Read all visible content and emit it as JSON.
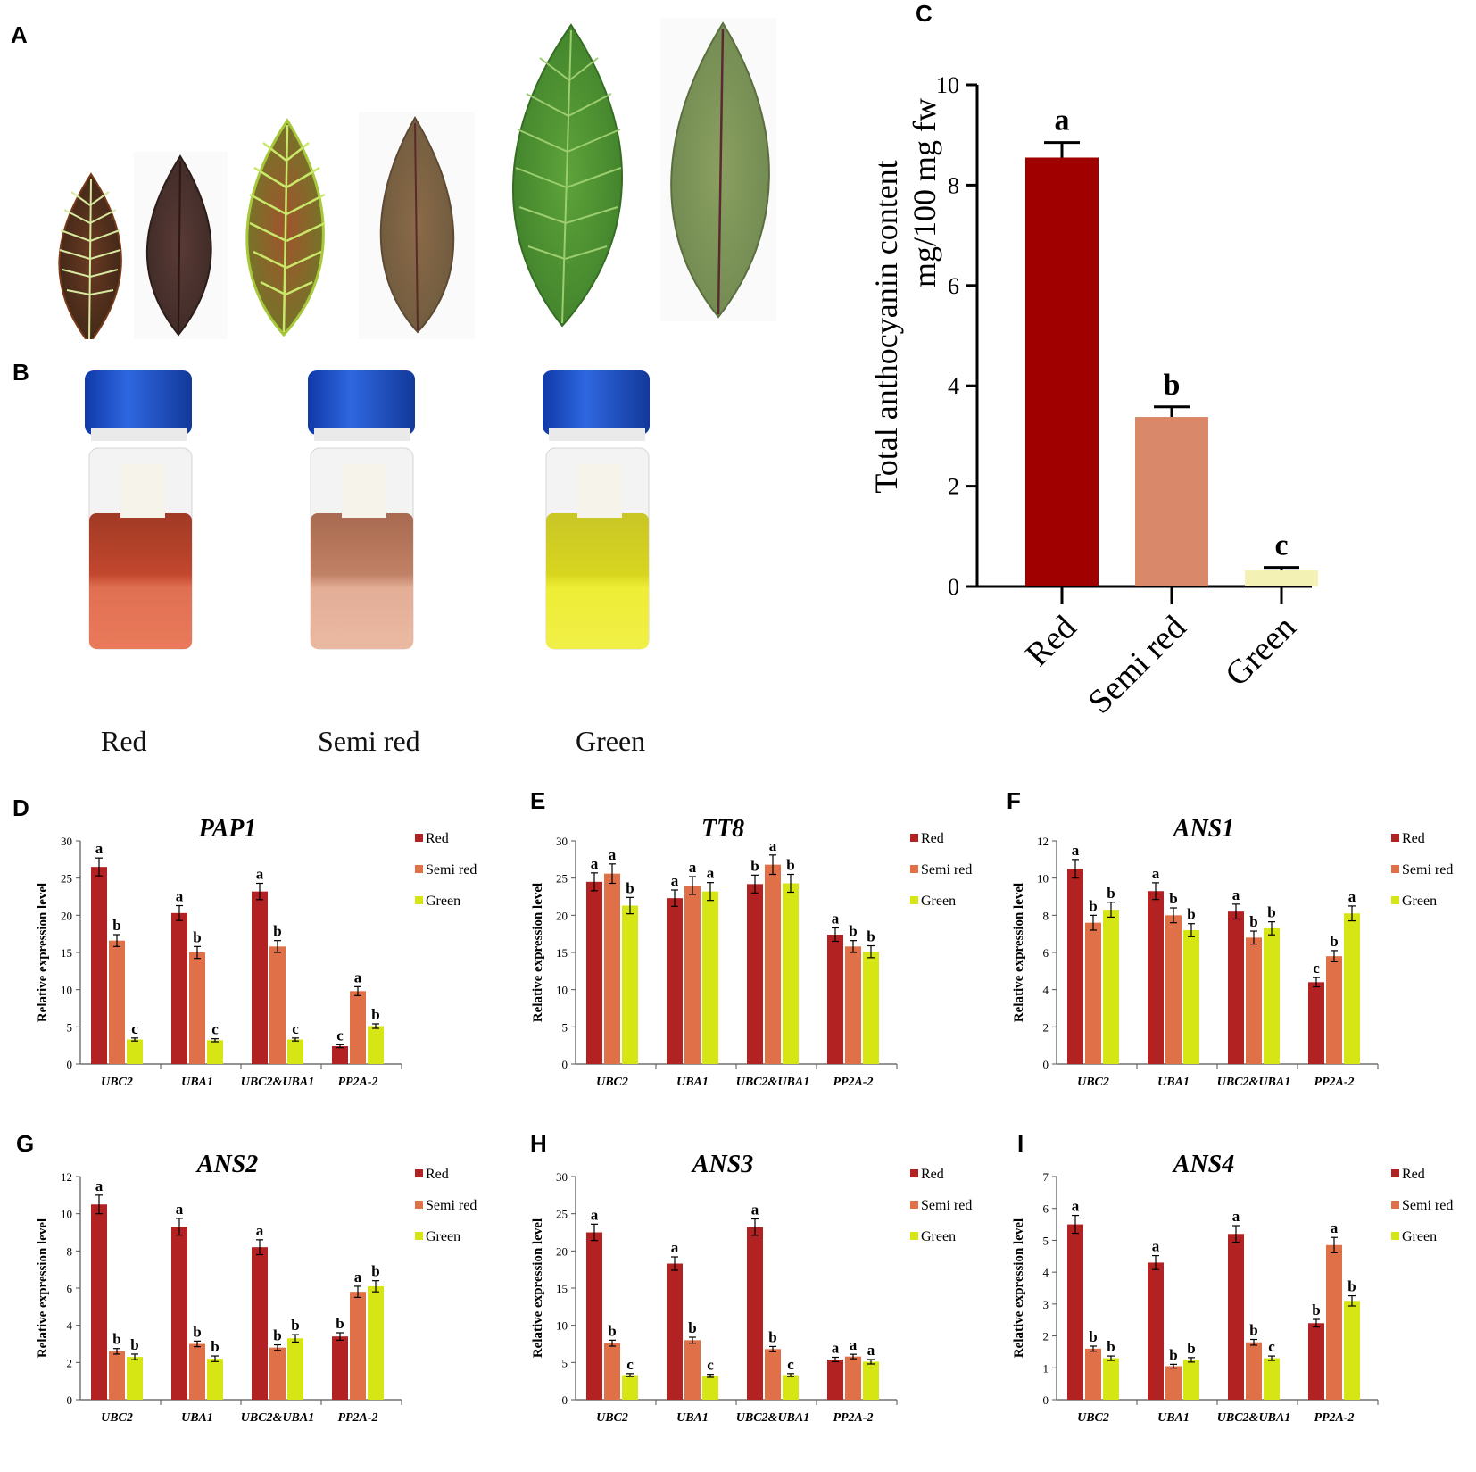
{
  "panels": {
    "A": "A",
    "B": "B",
    "C": "C",
    "D": "D",
    "E": "E",
    "F": "F",
    "G": "G",
    "H": "H",
    "I": "I"
  },
  "sample_labels": [
    "Red",
    "Semi red",
    "Green"
  ],
  "colors": {
    "red": "#b22222",
    "semi": "#e07048",
    "green": "#d6e614",
    "c_red": "#a00000",
    "c_semi": "#d9896a",
    "c_green": "#f3f2b4",
    "cap": "#1d4fc4"
  },
  "chart_data": [
    {
      "id": "C",
      "type": "bar",
      "title": "",
      "ylabel": "Total anthocyanin content mg/100 mg fw",
      "ylabel_lines": [
        "Total anthocyanin content",
        "mg/100 mg fw"
      ],
      "categories": [
        "Red",
        "Semi red",
        "Green"
      ],
      "values": [
        8.55,
        3.38,
        0.32
      ],
      "errors": [
        0.3,
        0.2,
        0.06
      ],
      "letters": [
        "a",
        "b",
        "c"
      ],
      "ylim": [
        0,
        10
      ],
      "yticks": [
        0,
        2,
        4,
        6,
        8,
        10
      ]
    },
    {
      "id": "D",
      "type": "bar",
      "title": "PAP1",
      "ylabel": "Relative expression level",
      "categories": [
        "UBC2",
        "UBA1",
        "UBC2&UBA1",
        "PP2A-2"
      ],
      "legend": [
        "Red",
        "Semi red",
        "Green"
      ],
      "ylim": [
        0,
        30
      ],
      "yticks": [
        0,
        5,
        10,
        15,
        20,
        25,
        30
      ],
      "series": [
        {
          "name": "Red",
          "values": [
            26.5,
            20.3,
            23.2,
            2.4
          ],
          "errors": [
            1.2,
            1.0,
            1.1,
            0.2
          ],
          "letters": [
            "a",
            "a",
            "a",
            "c"
          ]
        },
        {
          "name": "Semi red",
          "values": [
            16.6,
            15.0,
            15.8,
            9.8
          ],
          "errors": [
            0.8,
            0.8,
            0.8,
            0.6
          ],
          "letters": [
            "b",
            "b",
            "b",
            "a"
          ]
        },
        {
          "name": "Green",
          "values": [
            3.3,
            3.2,
            3.3,
            5.1
          ],
          "errors": [
            0.2,
            0.2,
            0.2,
            0.3
          ],
          "letters": [
            "c",
            "c",
            "c",
            "b"
          ]
        }
      ]
    },
    {
      "id": "E",
      "type": "bar",
      "title": "TT8",
      "ylabel": "Relative expression level",
      "categories": [
        "UBC2",
        "UBA1",
        "UBC2&UBA1",
        "PP2A-2"
      ],
      "legend": [
        "Red",
        "Semi red",
        "Green"
      ],
      "ylim": [
        0,
        30
      ],
      "yticks": [
        0,
        5,
        10,
        15,
        20,
        25,
        30
      ],
      "series": [
        {
          "name": "Red",
          "values": [
            24.5,
            22.3,
            24.2,
            17.4
          ],
          "errors": [
            1.2,
            1.1,
            1.2,
            0.9
          ],
          "letters": [
            "a",
            "a",
            "b",
            "a"
          ]
        },
        {
          "name": "Semi red",
          "values": [
            25.6,
            24.0,
            26.8,
            15.8
          ],
          "errors": [
            1.3,
            1.2,
            1.3,
            0.8
          ],
          "letters": [
            "a",
            "a",
            "a",
            "b"
          ]
        },
        {
          "name": "Green",
          "values": [
            21.3,
            23.2,
            24.3,
            15.1
          ],
          "errors": [
            1.1,
            1.2,
            1.2,
            0.8
          ],
          "letters": [
            "b",
            "a",
            "b",
            "b"
          ]
        }
      ]
    },
    {
      "id": "F",
      "type": "bar",
      "title": "ANS1",
      "ylabel": "Relative expression level",
      "categories": [
        "UBC2",
        "UBA1",
        "UBC2&UBA1",
        "PP2A-2"
      ],
      "legend": [
        "Red",
        "Semi red",
        "Green"
      ],
      "ylim": [
        0,
        12
      ],
      "yticks": [
        0,
        2,
        4,
        6,
        8,
        10,
        12
      ],
      "series": [
        {
          "name": "Red",
          "values": [
            10.5,
            9.3,
            8.2,
            4.4
          ],
          "errors": [
            0.5,
            0.45,
            0.4,
            0.25
          ],
          "letters": [
            "a",
            "a",
            "a",
            "c"
          ]
        },
        {
          "name": "Semi red",
          "values": [
            7.6,
            8.0,
            6.8,
            5.8
          ],
          "errors": [
            0.4,
            0.4,
            0.35,
            0.3
          ],
          "letters": [
            "b",
            "b",
            "b",
            "b"
          ]
        },
        {
          "name": "Green",
          "values": [
            8.3,
            7.2,
            7.3,
            8.1
          ],
          "errors": [
            0.4,
            0.35,
            0.35,
            0.4
          ],
          "letters": [
            "b",
            "b",
            "b",
            "a"
          ]
        }
      ]
    },
    {
      "id": "G",
      "type": "bar",
      "title": "ANS2",
      "ylabel": "Relative expression level",
      "categories": [
        "UBC2",
        "UBA1",
        "UBC2&UBA1",
        "PP2A-2"
      ],
      "legend": [
        "Red",
        "Semi red",
        "Green"
      ],
      "ylim": [
        0,
        12
      ],
      "yticks": [
        0,
        2,
        4,
        6,
        8,
        10,
        12
      ],
      "series": [
        {
          "name": "Red",
          "values": [
            10.5,
            9.3,
            8.2,
            3.4
          ],
          "errors": [
            0.5,
            0.45,
            0.4,
            0.2
          ],
          "letters": [
            "a",
            "a",
            "a",
            "b"
          ]
        },
        {
          "name": "Semi red",
          "values": [
            2.6,
            3.0,
            2.8,
            5.8
          ],
          "errors": [
            0.15,
            0.15,
            0.15,
            0.3
          ],
          "letters": [
            "b",
            "b",
            "b",
            "a"
          ]
        },
        {
          "name": "Green",
          "values": [
            2.3,
            2.2,
            3.3,
            6.1
          ],
          "errors": [
            0.15,
            0.15,
            0.2,
            0.3
          ],
          "letters": [
            "b",
            "b",
            "b",
            "b"
          ]
        }
      ]
    },
    {
      "id": "H",
      "type": "bar",
      "title": "ANS3",
      "ylabel": "Relative expression level",
      "categories": [
        "UBC2",
        "UBA1",
        "UBC2&UBA1",
        "PP2A-2"
      ],
      "legend": [
        "Red",
        "Semi red",
        "Green"
      ],
      "ylim": [
        0,
        30
      ],
      "yticks": [
        0,
        5,
        10,
        15,
        20,
        25,
        30
      ],
      "series": [
        {
          "name": "Red",
          "values": [
            22.5,
            18.3,
            23.2,
            5.4
          ],
          "errors": [
            1.1,
            0.9,
            1.1,
            0.3
          ],
          "letters": [
            "a",
            "a",
            "a",
            "a"
          ]
        },
        {
          "name": "Semi red",
          "values": [
            7.6,
            8.0,
            6.8,
            5.8
          ],
          "errors": [
            0.4,
            0.4,
            0.35,
            0.3
          ],
          "letters": [
            "b",
            "b",
            "b",
            "a"
          ]
        },
        {
          "name": "Green",
          "values": [
            3.3,
            3.2,
            3.3,
            5.1
          ],
          "errors": [
            0.2,
            0.2,
            0.2,
            0.3
          ],
          "letters": [
            "c",
            "c",
            "c",
            "a"
          ]
        }
      ]
    },
    {
      "id": "I",
      "type": "bar",
      "title": "ANS4",
      "ylabel": "Relative expression level",
      "categories": [
        "UBC2",
        "UBA1",
        "UBC2&UBA1",
        "PP2A-2"
      ],
      "legend": [
        "Red",
        "Semi red",
        "Green"
      ],
      "ylim": [
        0,
        7
      ],
      "yticks": [
        0,
        1,
        2,
        3,
        4,
        5,
        6,
        7
      ],
      "series": [
        {
          "name": "Red",
          "values": [
            5.5,
            4.3,
            5.2,
            2.4
          ],
          "errors": [
            0.28,
            0.22,
            0.26,
            0.12
          ],
          "letters": [
            "a",
            "a",
            "a",
            "b"
          ]
        },
        {
          "name": "Semi red",
          "values": [
            1.6,
            1.05,
            1.8,
            4.85
          ],
          "errors": [
            0.08,
            0.06,
            0.09,
            0.24
          ],
          "letters": [
            "b",
            "b",
            "b",
            "a"
          ]
        },
        {
          "name": "Green",
          "values": [
            1.3,
            1.25,
            1.3,
            3.1
          ],
          "errors": [
            0.07,
            0.07,
            0.07,
            0.16
          ],
          "letters": [
            "b",
            "b",
            "c",
            "b"
          ]
        }
      ]
    }
  ]
}
